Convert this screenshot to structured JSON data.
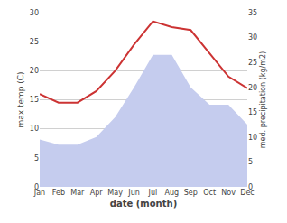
{
  "chart_data": {
    "type": "line",
    "categories": [
      "Jan",
      "Feb",
      "Mar",
      "Apr",
      "May",
      "Jun",
      "Jul",
      "Aug",
      "Sep",
      "Oct",
      "Nov",
      "Dec"
    ],
    "xlabel": "date (month)",
    "ylabel": "max temp (C)",
    "y2label": "med. precipitation (kg/m2)",
    "ylim": [
      0,
      30
    ],
    "yticks": [
      0,
      5,
      10,
      15,
      20,
      25,
      30
    ],
    "y2lim": [
      0,
      35
    ],
    "y2ticks": [
      0,
      5,
      10,
      15,
      20,
      25,
      30,
      35
    ],
    "grid": true,
    "series": [
      {
        "type": "area",
        "axis": "y2",
        "color": "#c5ccee",
        "values": [
          9.5,
          8.5,
          8.5,
          10.0,
          14.0,
          20.0,
          26.5,
          26.5,
          20.0,
          16.5,
          16.5,
          12.5
        ]
      },
      {
        "type": "line",
        "color": "#cc3333",
        "values": [
          16.0,
          14.5,
          14.5,
          16.5,
          20.0,
          24.5,
          28.5,
          27.5,
          27.0,
          23.0,
          19.0,
          17.0
        ]
      }
    ]
  }
}
